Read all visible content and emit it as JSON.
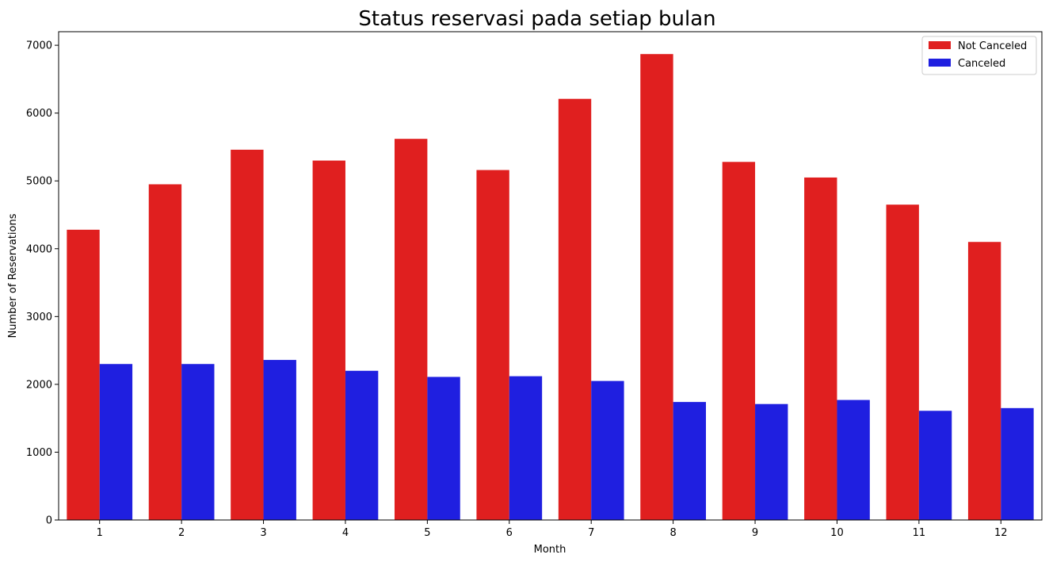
{
  "chart_data": {
    "type": "bar",
    "title": "Status reservasi pada setiap bulan",
    "xlabel": "Month",
    "ylabel": "Number of Reservations",
    "categories": [
      "1",
      "2",
      "3",
      "4",
      "5",
      "6",
      "7",
      "8",
      "9",
      "10",
      "11",
      "12"
    ],
    "ylim": [
      0,
      7200
    ],
    "yticks": [
      0,
      1000,
      2000,
      3000,
      4000,
      5000,
      6000,
      7000
    ],
    "grid": false,
    "legend_position": "top-right",
    "series": [
      {
        "name": "Not Canceled",
        "color": "#e01f1f",
        "values": [
          4280,
          4950,
          5460,
          5300,
          5620,
          5160,
          6210,
          6870,
          5280,
          5050,
          4650,
          4100
        ]
      },
      {
        "name": "Canceled",
        "color": "#1f1fe0",
        "values": [
          2300,
          2300,
          2360,
          2200,
          2110,
          2120,
          2050,
          1740,
          1710,
          1770,
          1610,
          1650
        ]
      }
    ]
  }
}
